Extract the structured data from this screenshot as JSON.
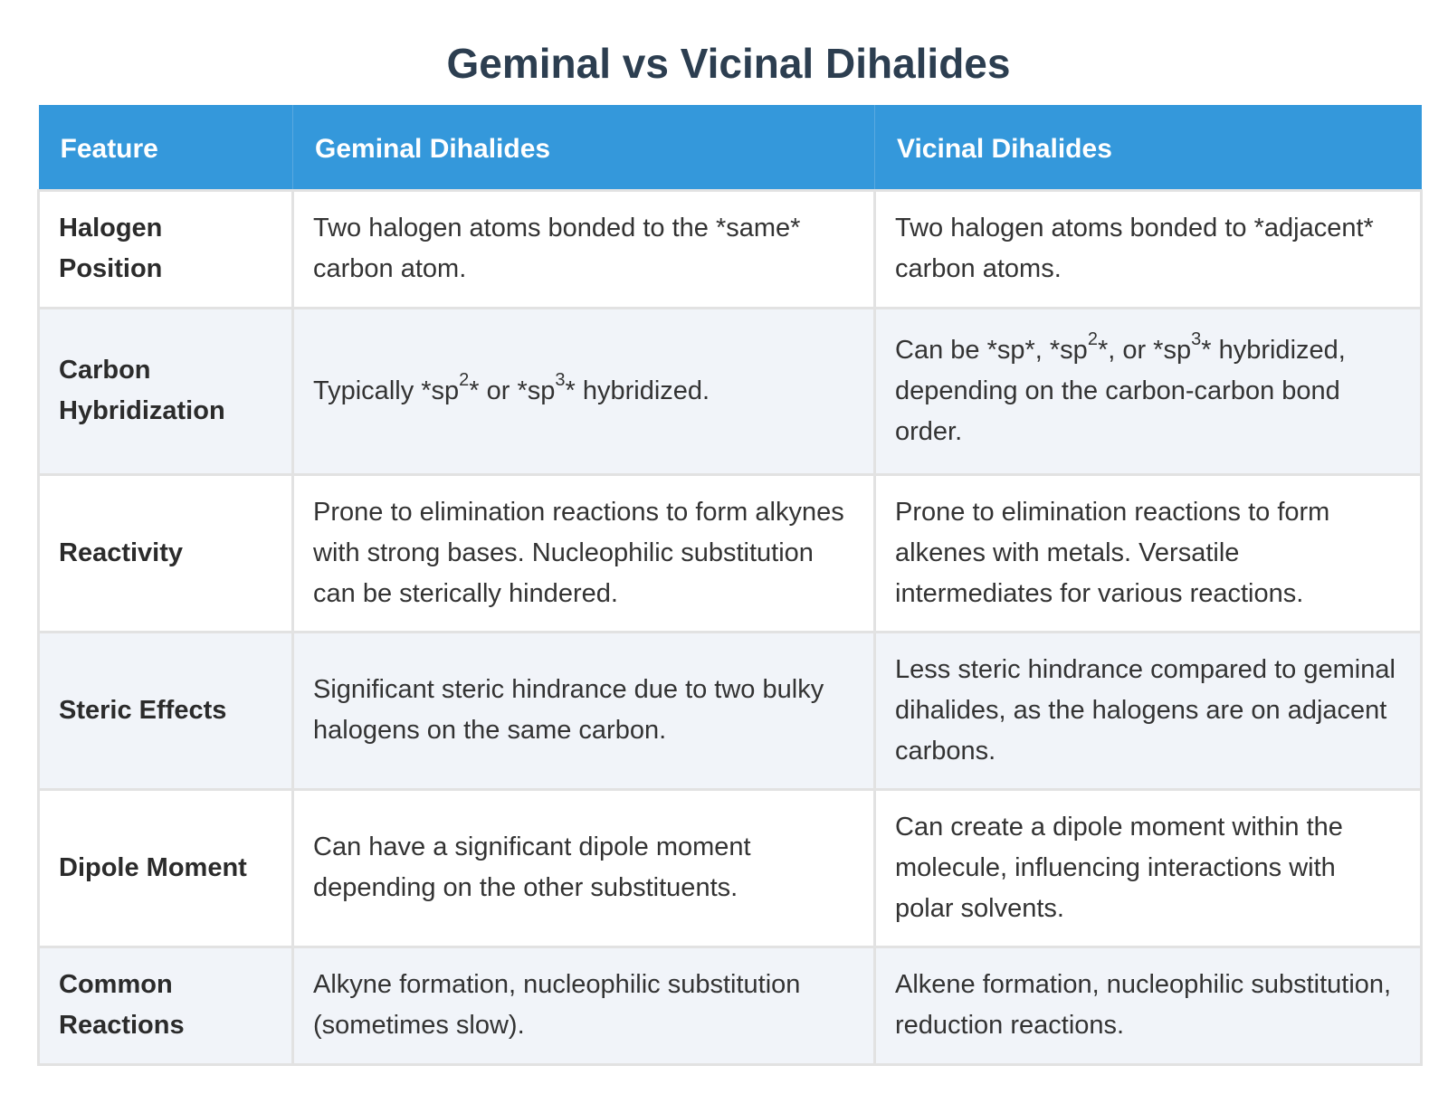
{
  "title": "Geminal vs Vicinal Dihalides",
  "table": {
    "headers": [
      "Feature",
      "Geminal Dihalides",
      "Vicinal Dihalides"
    ],
    "rows": [
      {
        "feature": "Halogen Position",
        "geminal": "Two halogen atoms bonded to the *same* carbon atom.",
        "vicinal": "Two halogen atoms bonded to *adjacent* carbon atoms."
      },
      {
        "feature": "Carbon Hybridization",
        "geminal": {
          "a": "Typically *sp",
          "sup1": "2",
          "b": "* or *sp",
          "sup2": "3",
          "c": "* hybridized."
        },
        "vicinal": {
          "a": "Can be *sp*, *sp",
          "sup1": "2",
          "b": "*, or *sp",
          "sup2": "3",
          "c": "* hybridized, depending on the carbon-carbon bond order."
        }
      },
      {
        "feature": "Reactivity",
        "geminal": "Prone to elimination reactions to form alkynes with strong bases. Nucleophilic substitution can be sterically hindered.",
        "vicinal": "Prone to elimination reactions to form alkenes with metals. Versatile intermediates for various reactions."
      },
      {
        "feature": "Steric Effects",
        "geminal": "Significant steric hindrance due to two bulky halogens on the same carbon.",
        "vicinal": "Less steric hindrance compared to geminal dihalides, as the halogens are on adjacent carbons."
      },
      {
        "feature": "Dipole Moment",
        "geminal": "Can have a significant dipole moment depending on the other substituents.",
        "vicinal": "Can create a dipole moment within the molecule, influencing interactions with polar solvents."
      },
      {
        "feature": "Common Reactions",
        "geminal": "Alkyne formation, nucleophilic substitution (sometimes slow).",
        "vicinal": "Alkene formation, nucleophilic substitution, reduction reactions."
      }
    ]
  },
  "colors": {
    "header_bg": "#3498db",
    "title": "#2c3e50",
    "row_alt_bg": "#f1f4f9",
    "border": "#e2e2e2"
  }
}
